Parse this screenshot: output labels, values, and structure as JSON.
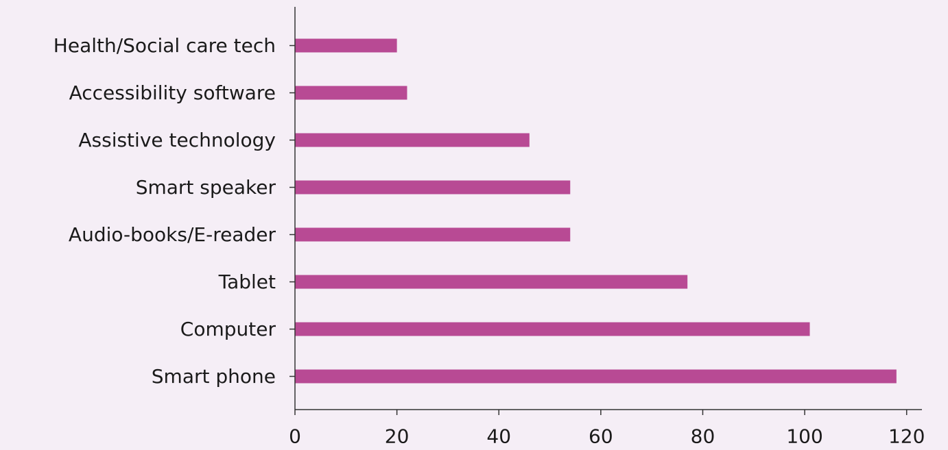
{
  "chart_data": {
    "type": "bar",
    "orientation": "horizontal",
    "title": "",
    "xlabel": "",
    "ylabel": "",
    "categories": [
      "Health/Social care tech",
      "Accessibility software",
      "Assistive technology",
      "Smart speaker",
      "Audio-books/E-reader",
      "Tablet",
      "Computer",
      "Smart phone"
    ],
    "values": [
      20,
      22,
      46,
      54,
      54,
      77,
      101,
      118
    ],
    "xlim": [
      0,
      123
    ],
    "xticks": [
      0,
      20,
      40,
      60,
      80,
      100,
      120
    ],
    "grid": false,
    "legend": "none",
    "colors": {
      "bar": "#b84a94",
      "background": "#f5eef6",
      "axis": "#333333"
    }
  }
}
